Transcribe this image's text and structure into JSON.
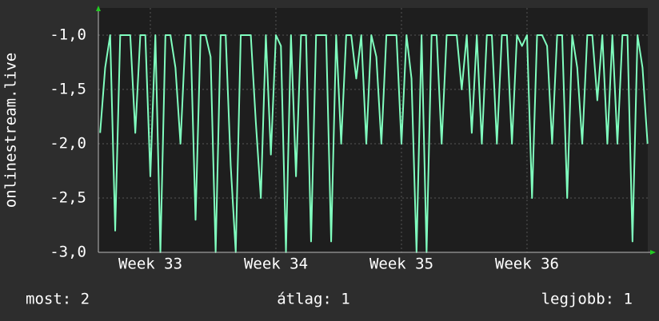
{
  "chart_data": {
    "type": "line",
    "y_label": "onlinestream.live",
    "color": "#80ffbf",
    "grid": true,
    "ylim": [
      -3,
      -0.75
    ],
    "yticks": [
      {
        "value": -3,
        "label": "-3,0"
      },
      {
        "value": -2.5,
        "label": "-2,5"
      },
      {
        "value": -2,
        "label": "-2,0"
      },
      {
        "value": -1.5,
        "label": "-1,5"
      },
      {
        "value": -1,
        "label": "-1,0"
      }
    ],
    "xlim": [
      32.586,
      36.962
    ],
    "xticks": [
      {
        "value": 33,
        "label": "Week 33"
      },
      {
        "value": 34,
        "label": "Week 34"
      },
      {
        "value": 35,
        "label": "Week 35"
      },
      {
        "value": 36,
        "label": "Week 36"
      }
    ],
    "x": [
      32.6,
      32.64,
      32.68,
      32.72,
      32.76,
      32.8,
      32.84,
      32.88,
      32.92,
      32.96,
      33,
      33.04,
      33.08,
      33.12,
      33.16,
      33.2,
      33.24,
      33.28,
      33.32,
      33.36,
      33.4,
      33.44,
      33.48,
      33.52,
      33.56,
      33.6,
      33.64,
      33.68,
      33.72,
      33.76,
      33.8,
      33.84,
      33.88,
      33.92,
      33.96,
      34,
      34.04,
      34.08,
      34.12,
      34.16,
      34.2,
      34.24,
      34.28,
      34.32,
      34.36,
      34.4,
      34.44,
      34.48,
      34.52,
      34.56,
      34.6,
      34.64,
      34.68,
      34.72,
      34.76,
      34.8,
      34.84,
      34.88,
      34.92,
      34.96,
      35,
      35.04,
      35.08,
      35.12,
      35.16,
      35.2,
      35.24,
      35.28,
      35.32,
      35.36,
      35.4,
      35.44,
      35.48,
      35.52,
      35.56,
      35.6,
      35.64,
      35.68,
      35.72,
      35.76,
      35.8,
      35.84,
      35.88,
      35.92,
      35.96,
      36,
      36.04,
      36.08,
      36.12,
      36.16,
      36.2,
      36.24,
      36.28,
      36.32,
      36.36,
      36.4,
      36.44,
      36.48,
      36.52,
      36.56,
      36.6,
      36.64,
      36.68,
      36.72,
      36.76,
      36.8,
      36.84,
      36.88,
      36.92,
      36.96
    ],
    "values": [
      -1.9,
      -1.3,
      -1,
      -2.8,
      -1,
      -1,
      -1,
      -1.9,
      -1,
      -1,
      -2.3,
      -1,
      -3,
      -1,
      -1,
      -1.3,
      -2,
      -1,
      -1,
      -2.7,
      -1,
      -1,
      -1.2,
      -3,
      -1,
      -1,
      -2.2,
      -3,
      -1,
      -1,
      -1,
      -1.8,
      -2.5,
      -1,
      -2.1,
      -1,
      -1.1,
      -3,
      -1,
      -2.3,
      -1,
      -1,
      -2.9,
      -1,
      -1,
      -1,
      -2.9,
      -1,
      -2,
      -1,
      -1,
      -1.4,
      -1,
      -2,
      -1,
      -1.2,
      -2,
      -1,
      -1,
      -1,
      -2,
      -1,
      -1.4,
      -3,
      -1,
      -3,
      -1,
      -1,
      -2,
      -1,
      -1,
      -1,
      -1.5,
      -1,
      -1.9,
      -1,
      -2,
      -1,
      -1,
      -2,
      -1,
      -1,
      -2,
      -1,
      -1.1,
      -1,
      -2.5,
      -1,
      -1,
      -1.1,
      -2,
      -1,
      -1,
      -2.5,
      -1,
      -1.3,
      -2,
      -1,
      -1,
      -1.6,
      -1,
      -2,
      -1,
      -2,
      -1,
      -1,
      -2.9,
      -1,
      -1.3,
      -2
    ],
    "footer": [
      "most: 2",
      "átlag: 1",
      "legjobb: 1"
    ]
  }
}
